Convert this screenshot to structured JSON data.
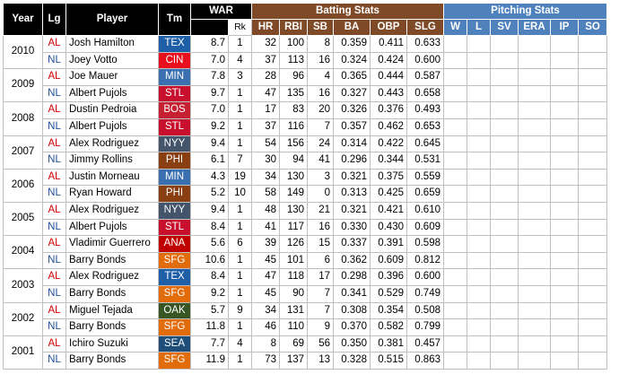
{
  "headers": {
    "year": "Year",
    "lg": "Lg",
    "player": "Player",
    "tm": "Tm",
    "war": "WAR",
    "rk": "Rk",
    "batting": "Batting Stats",
    "pitching": "Pitching Stats",
    "batting_cols": [
      "HR",
      "RBI",
      "SB",
      "BA",
      "OBP",
      "SLG"
    ],
    "pitching_cols": [
      "W",
      "L",
      "SV",
      "ERA",
      "IP",
      "SO"
    ]
  },
  "colors": {
    "al": "#d00000",
    "nl": "#1f4e9a",
    "TEX": "#1f5fa8",
    "CIN": "#e8101c",
    "MIN": "#3a6fb0",
    "STL": "#c8102e",
    "BOS": "#c62033",
    "NYY": "#44546a",
    "PHI": "#8a3f12",
    "ANA": "#c00000",
    "SFG": "#e26b0a",
    "OAK": "#375623",
    "SEA": "#1f4e79"
  },
  "seasons": [
    {
      "year": "2010",
      "rows": [
        {
          "lg": "AL",
          "player": "Josh Hamilton",
          "tm": "TEX",
          "war": "8.7",
          "rk": "1",
          "hr": "32",
          "rbi": "100",
          "sb": "8",
          "ba": "0.359",
          "obp": "0.411",
          "slg": "0.633"
        },
        {
          "lg": "NL",
          "player": "Joey Votto",
          "tm": "CIN",
          "war": "7.0",
          "rk": "4",
          "hr": "37",
          "rbi": "113",
          "sb": "16",
          "ba": "0.324",
          "obp": "0.424",
          "slg": "0.600"
        }
      ]
    },
    {
      "year": "2009",
      "rows": [
        {
          "lg": "AL",
          "player": "Joe Mauer",
          "tm": "MIN",
          "war": "7.8",
          "rk": "3",
          "hr": "28",
          "rbi": "96",
          "sb": "4",
          "ba": "0.365",
          "obp": "0.444",
          "slg": "0.587"
        },
        {
          "lg": "NL",
          "player": "Albert Pujols",
          "tm": "STL",
          "war": "9.7",
          "rk": "1",
          "hr": "47",
          "rbi": "135",
          "sb": "16",
          "ba": "0.327",
          "obp": "0.443",
          "slg": "0.658"
        }
      ]
    },
    {
      "year": "2008",
      "rows": [
        {
          "lg": "AL",
          "player": "Dustin Pedroia",
          "tm": "BOS",
          "war": "7.0",
          "rk": "1",
          "hr": "17",
          "rbi": "83",
          "sb": "20",
          "ba": "0.326",
          "obp": "0.376",
          "slg": "0.493"
        },
        {
          "lg": "NL",
          "player": "Albert Pujols",
          "tm": "STL",
          "war": "9.2",
          "rk": "1",
          "hr": "37",
          "rbi": "116",
          "sb": "7",
          "ba": "0.357",
          "obp": "0.462",
          "slg": "0.653"
        }
      ]
    },
    {
      "year": "2007",
      "rows": [
        {
          "lg": "AL",
          "player": "Alex Rodriguez",
          "tm": "NYY",
          "war": "9.4",
          "rk": "1",
          "hr": "54",
          "rbi": "156",
          "sb": "24",
          "ba": "0.314",
          "obp": "0.422",
          "slg": "0.645"
        },
        {
          "lg": "NL",
          "player": "Jimmy Rollins",
          "tm": "PHI",
          "war": "6.1",
          "rk": "7",
          "hr": "30",
          "rbi": "94",
          "sb": "41",
          "ba": "0.296",
          "obp": "0.344",
          "slg": "0.531"
        }
      ]
    },
    {
      "year": "2006",
      "rows": [
        {
          "lg": "AL",
          "player": "Justin Morneau",
          "tm": "MIN",
          "war": "4.3",
          "rk": "19",
          "hr": "34",
          "rbi": "130",
          "sb": "3",
          "ba": "0.321",
          "obp": "0.375",
          "slg": "0.559"
        },
        {
          "lg": "NL",
          "player": "Ryan Howard",
          "tm": "PHI",
          "war": "5.2",
          "rk": "10",
          "hr": "58",
          "rbi": "149",
          "sb": "0",
          "ba": "0.313",
          "obp": "0.425",
          "slg": "0.659"
        }
      ]
    },
    {
      "year": "2005",
      "rows": [
        {
          "lg": "AL",
          "player": "Alex Rodriguez",
          "tm": "NYY",
          "war": "9.4",
          "rk": "1",
          "hr": "48",
          "rbi": "130",
          "sb": "21",
          "ba": "0.321",
          "obp": "0.421",
          "slg": "0.610"
        },
        {
          "lg": "NL",
          "player": "Albert Pujols",
          "tm": "STL",
          "war": "8.4",
          "rk": "1",
          "hr": "41",
          "rbi": "117",
          "sb": "16",
          "ba": "0.330",
          "obp": "0.430",
          "slg": "0.609"
        }
      ]
    },
    {
      "year": "2004",
      "rows": [
        {
          "lg": "AL",
          "player": "Vladimir Guerrero",
          "tm": "ANA",
          "war": "5.6",
          "rk": "6",
          "hr": "39",
          "rbi": "126",
          "sb": "15",
          "ba": "0.337",
          "obp": "0.391",
          "slg": "0.598"
        },
        {
          "lg": "NL",
          "player": "Barry Bonds",
          "tm": "SFG",
          "war": "10.6",
          "rk": "1",
          "hr": "45",
          "rbi": "101",
          "sb": "6",
          "ba": "0.362",
          "obp": "0.609",
          "slg": "0.812"
        }
      ]
    },
    {
      "year": "2003",
      "rows": [
        {
          "lg": "AL",
          "player": "Alex Rodriguez",
          "tm": "TEX",
          "war": "8.4",
          "rk": "1",
          "hr": "47",
          "rbi": "118",
          "sb": "17",
          "ba": "0.298",
          "obp": "0.396",
          "slg": "0.600"
        },
        {
          "lg": "NL",
          "player": "Barry Bonds",
          "tm": "SFG",
          "war": "9.2",
          "rk": "1",
          "hr": "45",
          "rbi": "90",
          "sb": "7",
          "ba": "0.341",
          "obp": "0.529",
          "slg": "0.749"
        }
      ]
    },
    {
      "year": "2002",
      "rows": [
        {
          "lg": "AL",
          "player": "Miguel Tejada",
          "tm": "OAK",
          "war": "5.7",
          "rk": "9",
          "hr": "34",
          "rbi": "131",
          "sb": "7",
          "ba": "0.308",
          "obp": "0.354",
          "slg": "0.508"
        },
        {
          "lg": "NL",
          "player": "Barry Bonds",
          "tm": "SFG",
          "war": "11.8",
          "rk": "1",
          "hr": "46",
          "rbi": "110",
          "sb": "9",
          "ba": "0.370",
          "obp": "0.582",
          "slg": "0.799"
        }
      ]
    },
    {
      "year": "2001",
      "rows": [
        {
          "lg": "AL",
          "player": "Ichiro Suzuki",
          "tm": "SEA",
          "war": "7.7",
          "rk": "4",
          "hr": "8",
          "rbi": "69",
          "sb": "56",
          "ba": "0.350",
          "obp": "0.381",
          "slg": "0.457"
        },
        {
          "lg": "NL",
          "player": "Barry Bonds",
          "tm": "SFG",
          "war": "11.9",
          "rk": "1",
          "hr": "73",
          "rbi": "137",
          "sb": "13",
          "ba": "0.328",
          "obp": "0.515",
          "slg": "0.863"
        }
      ]
    }
  ]
}
